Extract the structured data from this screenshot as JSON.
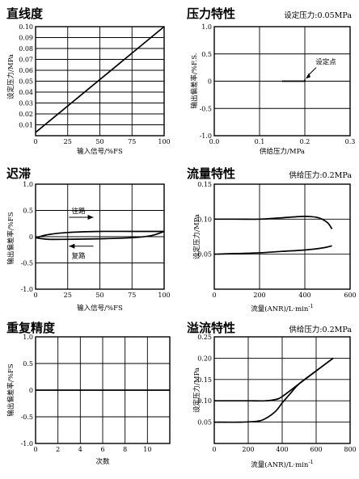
{
  "chart_data": [
    {
      "id": "linearity",
      "type": "line",
      "title": "直线度",
      "xlabel": "输入信号/%FS",
      "ylabel": "设定压力/MPa",
      "xlim": [
        0,
        100
      ],
      "ylim": [
        0,
        0.1
      ],
      "xticks": [
        "0",
        "25",
        "50",
        "75",
        "100"
      ],
      "yticks": [
        "0.01",
        "0.02",
        "0.03",
        "0.04",
        "0.05",
        "0.06",
        "0.07",
        "0.08",
        "0.09",
        "0.10"
      ],
      "grid": true,
      "series": [
        {
          "x": [
            0,
            100
          ],
          "y": [
            0.003,
            0.1
          ]
        }
      ]
    },
    {
      "id": "pressure",
      "type": "line",
      "title": "压力特性",
      "note": "设定压力:0.05MPa",
      "xlabel": "供给压力/MPa",
      "ylabel": "输出偏差率/%F.S.",
      "xlim": [
        0,
        0.3
      ],
      "ylim": [
        -1.0,
        1.0
      ],
      "xticks": [
        "0.0",
        "0.1",
        "0.2",
        "0.3"
      ],
      "yticks": [
        "-1.0",
        "-0.5",
        "0",
        "0.5",
        "1.0"
      ],
      "grid": true,
      "annotations": [
        "设定点"
      ],
      "series": [
        {
          "x": [
            0.15,
            0.2,
            0.2
          ],
          "y": [
            0,
            0,
            0.03
          ]
        }
      ]
    },
    {
      "id": "hysteresis",
      "type": "line",
      "title": "迟滞",
      "xlabel": "输入信号/%FS",
      "ylabel": "输出偏差率/%FS",
      "xlim": [
        0,
        100
      ],
      "ylim": [
        -1.0,
        1.0
      ],
      "xticks": [
        "0",
        "25",
        "50",
        "75",
        "100"
      ],
      "yticks": [
        "-1.0",
        "-0.5",
        "0",
        "0.5",
        "1.0"
      ],
      "grid": true,
      "annotations": [
        "往路",
        "复路"
      ],
      "series": [
        {
          "name": "往路",
          "x": [
            0,
            10,
            25,
            50,
            75,
            90,
            100
          ],
          "y": [
            -0.02,
            0.04,
            0.08,
            0.1,
            0.1,
            0.1,
            0.1
          ]
        },
        {
          "name": "复路",
          "x": [
            100,
            90,
            75,
            50,
            25,
            10,
            0
          ],
          "y": [
            0.1,
            0.02,
            -0.02,
            -0.04,
            -0.05,
            -0.05,
            -0.02
          ]
        }
      ]
    },
    {
      "id": "flow",
      "type": "line",
      "title": "流量特性",
      "note": "供给压力:0.2MPa",
      "xlabel": "流量(ANR)/L·min",
      "xlabel_sup": "-1",
      "ylabel": "设定压力/MPa",
      "xlim": [
        0,
        600
      ],
      "ylim": [
        0,
        0.15
      ],
      "xticks": [
        "0",
        "200",
        "400",
        "600"
      ],
      "yticks": [
        "0.05",
        "0.10",
        "0.15"
      ],
      "grid": true,
      "series": [
        {
          "x": [
            0,
            100,
            200,
            300,
            400,
            460,
            500,
            520
          ],
          "y": [
            0.1,
            0.1,
            0.1,
            0.102,
            0.104,
            0.102,
            0.095,
            0.086
          ]
        },
        {
          "x": [
            0,
            100,
            200,
            300,
            400,
            480,
            520
          ],
          "y": [
            0.05,
            0.051,
            0.052,
            0.054,
            0.056,
            0.059,
            0.062
          ]
        }
      ]
    },
    {
      "id": "repeatability",
      "type": "line",
      "title": "重复精度",
      "xlabel": "次数",
      "ylabel": "输出偏差率/%FS",
      "xlim": [
        0,
        12
      ],
      "ylim": [
        -1.0,
        1.0
      ],
      "xticks": [
        "0",
        "2",
        "4",
        "6",
        "8",
        "10"
      ],
      "yticks": [
        "-1.0",
        "-0.5",
        "0",
        "0.5",
        "1.0"
      ],
      "grid": true,
      "series": [
        {
          "x": [
            0,
            12
          ],
          "y": [
            0,
            0
          ]
        }
      ]
    },
    {
      "id": "relief",
      "type": "line",
      "title": "溢流特性",
      "note": "供给压力:0.2MPa",
      "xlabel": "流量(ANR)/L·min",
      "xlabel_sup": "-1",
      "ylabel": "设定压力/MPa",
      "xlim": [
        0,
        800
      ],
      "ylim": [
        0,
        0.25
      ],
      "xticks": [
        "0",
        "200",
        "400",
        "600",
        "800"
      ],
      "yticks": [
        "0.05",
        "0.10",
        "0.15",
        "0.20",
        "0.25"
      ],
      "grid": true,
      "series": [
        {
          "x": [
            0,
            150,
            250,
            300,
            360,
            400,
            450,
            500,
            600,
            700
          ],
          "y": [
            0.05,
            0.05,
            0.052,
            0.058,
            0.075,
            0.095,
            0.118,
            0.14,
            0.17,
            0.2
          ]
        },
        {
          "x": [
            0,
            200,
            300,
            360,
            400,
            500,
            600,
            700
          ],
          "y": [
            0.1,
            0.1,
            0.1,
            0.103,
            0.11,
            0.14,
            0.17,
            0.2
          ]
        }
      ]
    }
  ]
}
